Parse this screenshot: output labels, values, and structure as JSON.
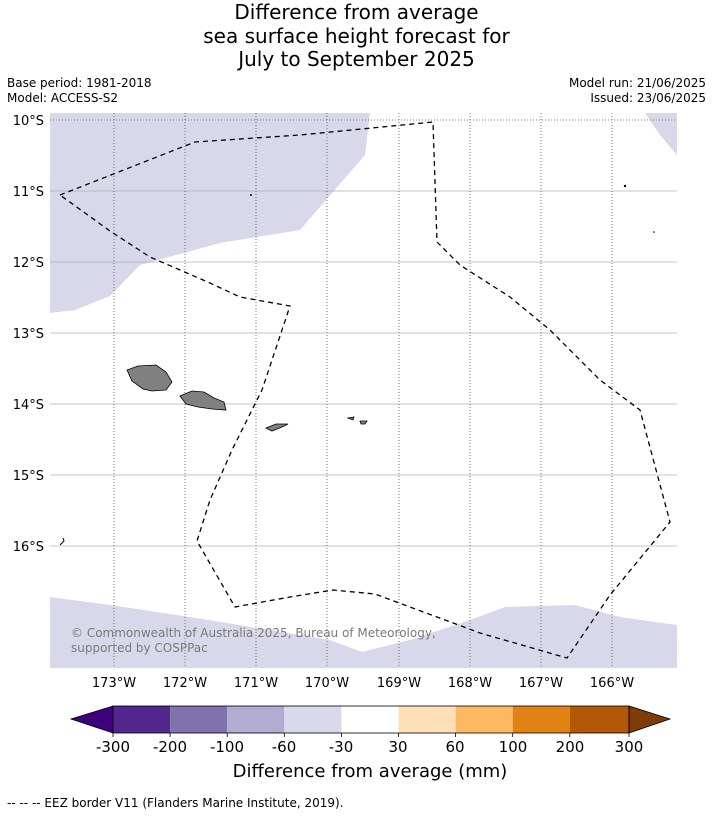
{
  "title": {
    "line1": "Difference from average",
    "line2": "sea surface height forecast for",
    "line3": "July to September 2025"
  },
  "meta": {
    "base_period": "Base period: 1981-2018",
    "model": "Model: ACCESS-S2",
    "model_run": "Model run: 21/06/2025",
    "issued": "Issued: 23/06/2025"
  },
  "map": {
    "lat_labels": [
      "10°S",
      "11°S",
      "12°S",
      "13°S",
      "14°S",
      "15°S",
      "16°S"
    ],
    "lon_labels": [
      "173°W",
      "172°W",
      "171°W",
      "170°W",
      "169°W",
      "168°W",
      "167°W",
      "166°W"
    ],
    "copyright": "© Commonwealth of Australia 2025, Bureau of Meteorology, supported by COSPPac",
    "colors": {
      "anomaly_fill": "#d8d8ea",
      "land": "#808080",
      "grid": "#b0b0b0"
    }
  },
  "colorbar": {
    "title": "Difference from average (mm)",
    "tick_labels": [
      "-300",
      "-200",
      "-100",
      "-60",
      "-30",
      "30",
      "60",
      "100",
      "200",
      "300"
    ],
    "colors": [
      "#3f007d",
      "#54278f",
      "#8073ac",
      "#b2abd2",
      "#d8daeb",
      "#ffffff",
      "#fee0b6",
      "#fdb863",
      "#e08214",
      "#b35806",
      "#7f3b08"
    ]
  },
  "footer": {
    "legend_text": "--  --  -- EEZ border V11 (Flanders Marine Institute, 2019)."
  }
}
